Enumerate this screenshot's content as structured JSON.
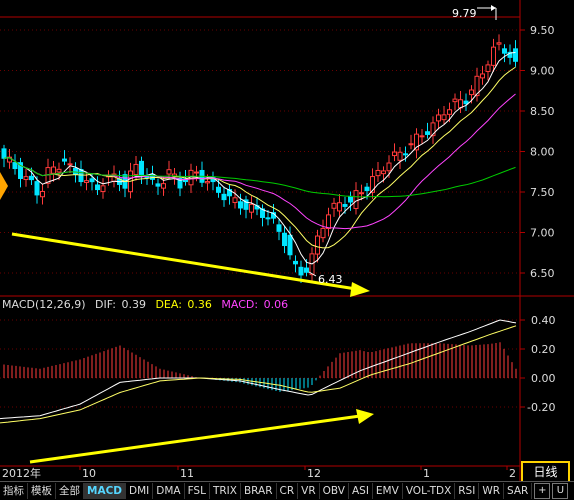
{
  "price_panel": {
    "y_ticks": [
      "9.50",
      "9.00",
      "8.50",
      "8.00",
      "7.50",
      "7.00",
      "6.50"
    ],
    "y_tick_values": [
      9.5,
      9.0,
      8.5,
      8.0,
      7.5,
      7.0,
      6.5
    ],
    "high_label": "9.79",
    "low_label": "6.43",
    "colors": {
      "up": "#ff3b3b",
      "down": "#00e5ff",
      "ma5": "#ffffff",
      "ma10": "#ffff66",
      "ma20": "#ff44ff",
      "ma60": "#00cc00",
      "arrow": "#ffff00",
      "axis": "#b00000"
    }
  },
  "macd_panel": {
    "title": "MACD(12,26,9)",
    "dif_label": "DIF:",
    "dif_value": "0.39",
    "dea_label": "DEA:",
    "dea_value": "0.36",
    "macd_label": "MACD:",
    "macd_value": "0.06",
    "y_ticks": [
      "0.40",
      "0.20",
      "0.00",
      "-0.20"
    ],
    "y_tick_values": [
      0.4,
      0.2,
      0.0,
      -0.2
    ]
  },
  "time_axis": {
    "labels": [
      "2012年",
      "10",
      "11",
      "12",
      "1",
      "2"
    ]
  },
  "period_label": "日线",
  "indicator_tabs": [
    "指标",
    "模板",
    "全部",
    "MACD",
    "DMI",
    "DMA",
    "FSL",
    "TRIX",
    "BRAR",
    "CR",
    "VR",
    "OBV",
    "ASI",
    "EMV",
    "VOL-TDX",
    "RSI",
    "WR",
    "SAR"
  ],
  "selected_indicator": "MACD",
  "bar_controls": [
    "+",
    "U"
  ]
}
